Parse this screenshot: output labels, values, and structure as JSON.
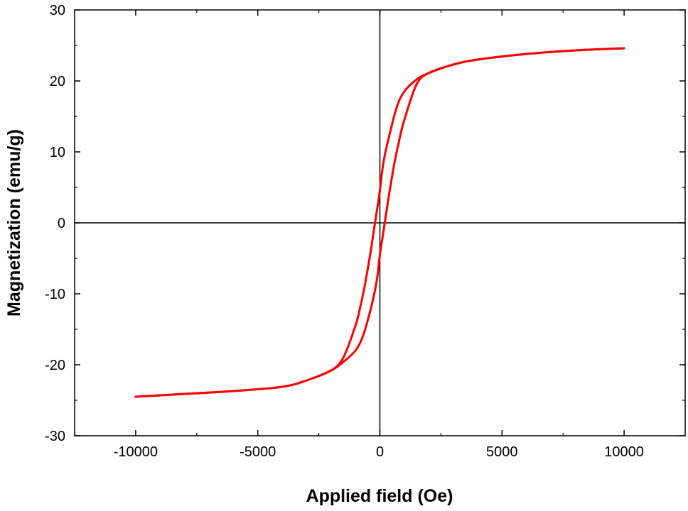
{
  "chart_data": {
    "type": "line",
    "title": "",
    "xlabel": "Applied field (Oe)",
    "ylabel": "Magnetization (emu/g)",
    "xlim": [
      -12500,
      12500
    ],
    "ylim": [
      -30,
      30
    ],
    "x_ticks": [
      -10000,
      -5000,
      0,
      5000,
      10000
    ],
    "x_tick_labels": [
      "-10000",
      "-5000",
      "0",
      "5000",
      "10000"
    ],
    "y_ticks": [
      -30,
      -20,
      -10,
      0,
      10,
      20,
      30
    ],
    "y_tick_labels": [
      "-30",
      "-20",
      "-10",
      "0",
      "10",
      "20",
      "30"
    ],
    "zero_lines": true,
    "grid": false,
    "legend": "none",
    "series_color": "#ff0000",
    "series": [
      {
        "branch": "descending",
        "x": [
          10000,
          8000,
          6000,
          4000,
          3000,
          2000,
          1500,
          1000,
          700,
          400,
          200,
          100,
          0,
          -100,
          -200,
          -300,
          -400,
          -600,
          -800,
          -1000,
          -1500,
          -2000,
          -3000,
          -4000,
          -6000,
          -8000,
          -10000
        ],
        "y": [
          24.6,
          24.3,
          23.8,
          23.0,
          22.3,
          21.1,
          20.2,
          18.5,
          16.4,
          12.5,
          9.5,
          7.5,
          4.5,
          2.2,
          0,
          -2.3,
          -4.5,
          -8.5,
          -11.8,
          -14.5,
          -19.0,
          -20.8,
          -22.2,
          -23.1,
          -23.7,
          -24.1,
          -24.5
        ]
      },
      {
        "branch": "ascending",
        "x": [
          -10000,
          -8000,
          -6000,
          -4000,
          -3000,
          -2000,
          -1500,
          -1000,
          -700,
          -400,
          -200,
          -100,
          0,
          100,
          200,
          300,
          400,
          600,
          800,
          1000,
          1500,
          2000,
          3000,
          4000,
          6000,
          8000,
          10000
        ],
        "y": [
          -24.5,
          -24.1,
          -23.7,
          -23.1,
          -22.2,
          -20.8,
          -19.6,
          -18.0,
          -16.0,
          -12.5,
          -9.5,
          -7.5,
          -4.5,
          -2.2,
          0,
          2.3,
          4.5,
          8.5,
          11.8,
          14.5,
          19.5,
          21.1,
          22.3,
          23.0,
          23.8,
          24.3,
          24.6
        ]
      }
    ]
  }
}
